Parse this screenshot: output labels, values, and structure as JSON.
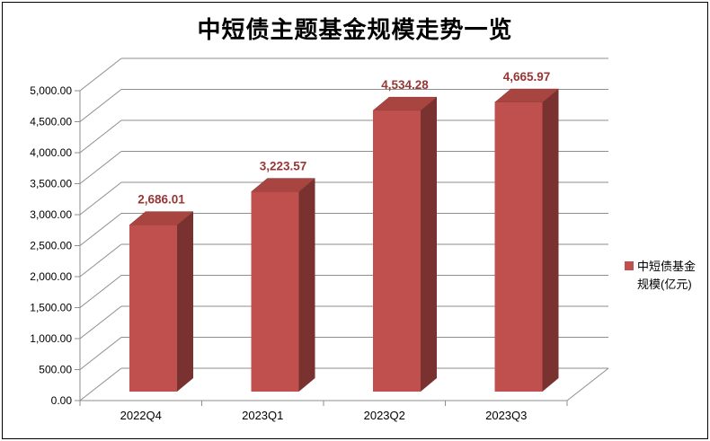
{
  "chart_data": {
    "type": "bar",
    "style": "3d-column",
    "title": "中短债主题基金规模走势一览",
    "categories": [
      "2022Q4",
      "2023Q1",
      "2023Q2",
      "2023Q3"
    ],
    "series": [
      {
        "name": "中短债基金规模(亿元)",
        "values": [
          2686.01,
          3223.57,
          4534.28,
          4665.97
        ]
      }
    ],
    "value_labels": [
      "2,686.01",
      "3,223.57",
      "4,534.28",
      "4,665.97"
    ],
    "xlabel": "",
    "ylabel": "",
    "y_axis": {
      "min": 0,
      "max": 5000,
      "step": 500,
      "tick_labels": [
        "0.00",
        "500.00",
        "1,000.00",
        "1,500.00",
        "2,000.00",
        "2,500.00",
        "3,000.00",
        "3,500.00",
        "4,000.00",
        "4,500.00",
        "5,000.00"
      ]
    },
    "grid": true,
    "legend": {
      "position": "right",
      "lines": [
        "中短债基金",
        "规模(亿元)"
      ],
      "marker_color": "#C0504D"
    },
    "colors": {
      "bar_front": "#C0504D",
      "bar_top": "#A94541",
      "bar_side": "#7A3230",
      "data_label": "#963735",
      "gridline": "#8E8E8E",
      "axis_text": "#000000",
      "background": "#FFFFFF"
    }
  }
}
